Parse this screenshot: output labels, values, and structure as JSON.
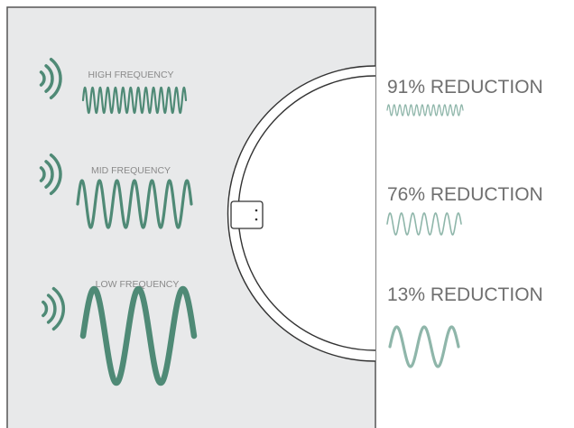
{
  "colors": {
    "panel_bg": "#e8e9ea",
    "panel_border": "#555555",
    "wave_dark": "#4f8a76",
    "wave_light": "#8fb6aa",
    "label_grey": "#8a8a8a",
    "reduction_grey": "#6f6f6f"
  },
  "incoming": [
    {
      "label": "HIGH FREQUENCY",
      "icon": "sound-waves-icon"
    },
    {
      "label": "MID FREQUENCY",
      "icon": "sound-waves-icon"
    },
    {
      "label": "LOW FREQUENCY",
      "icon": "sound-waves-icon"
    }
  ],
  "outgoing": [
    {
      "reduction": "91% REDUCTION",
      "remaining_fraction": 0.09
    },
    {
      "reduction": "76% REDUCTION",
      "remaining_fraction": 0.24
    },
    {
      "reduction": "13% REDUCTION",
      "remaining_fraction": 0.87
    }
  ]
}
